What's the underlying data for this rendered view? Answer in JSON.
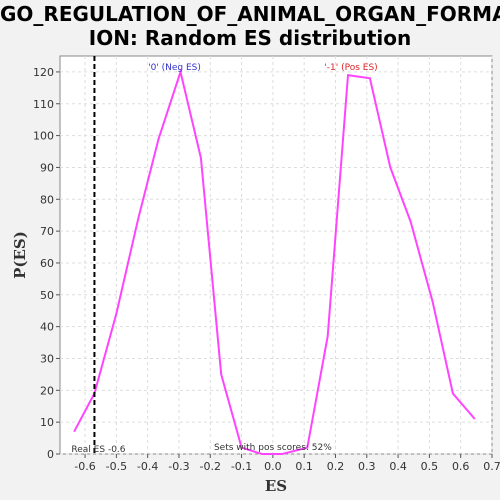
{
  "chart_data": {
    "type": "line",
    "title_lines": [
      "GO_REGULATION_OF_ANIMAL_ORGAN_FORMAT",
      "ION: Random ES distribution"
    ],
    "xlabel": "ES",
    "ylabel": "P(ES)",
    "xlim": [
      -0.68,
      0.7
    ],
    "ylim": [
      0,
      125
    ],
    "x_ticks": [
      "-0.6",
      "-0.5",
      "-0.4",
      "-0.3",
      "-0.2",
      "-0.1",
      "0.0",
      "0.1",
      "0.2",
      "0.3",
      "0.4",
      "0.5",
      "0.6",
      "0.7"
    ],
    "y_ticks": [
      "0",
      "10",
      "20",
      "30",
      "40",
      "50",
      "60",
      "70",
      "80",
      "90",
      "100",
      "110",
      "120"
    ],
    "grid": true,
    "series": [
      {
        "color": "#ff44ff",
        "x": [
          -0.635,
          -0.57,
          -0.5,
          -0.43,
          -0.365,
          -0.295,
          -0.23,
          -0.165,
          -0.1,
          -0.035,
          0.03,
          0.11,
          0.175,
          0.24,
          0.31,
          0.375,
          0.44,
          0.51,
          0.575,
          0.645
        ],
        "y": [
          7,
          19,
          44,
          74,
          99,
          120,
          93,
          25,
          2,
          0,
          0,
          2,
          37,
          119,
          118,
          90,
          73,
          48,
          19,
          11
        ]
      }
    ],
    "real_es": {
      "x": -0.57,
      "label": "Real ES -0.6"
    },
    "annotations": {
      "neg_label": "'0' (Neg ES)",
      "pos_label": "'-1' (Pos ES)",
      "sets_label": "Sets with pos scores: 52%"
    },
    "colors": {
      "neg": "#3333cc",
      "pos": "#dd2222",
      "line": "#ff44ff",
      "background": "#f2f2f2",
      "plot_bg": "#ffffff"
    }
  }
}
